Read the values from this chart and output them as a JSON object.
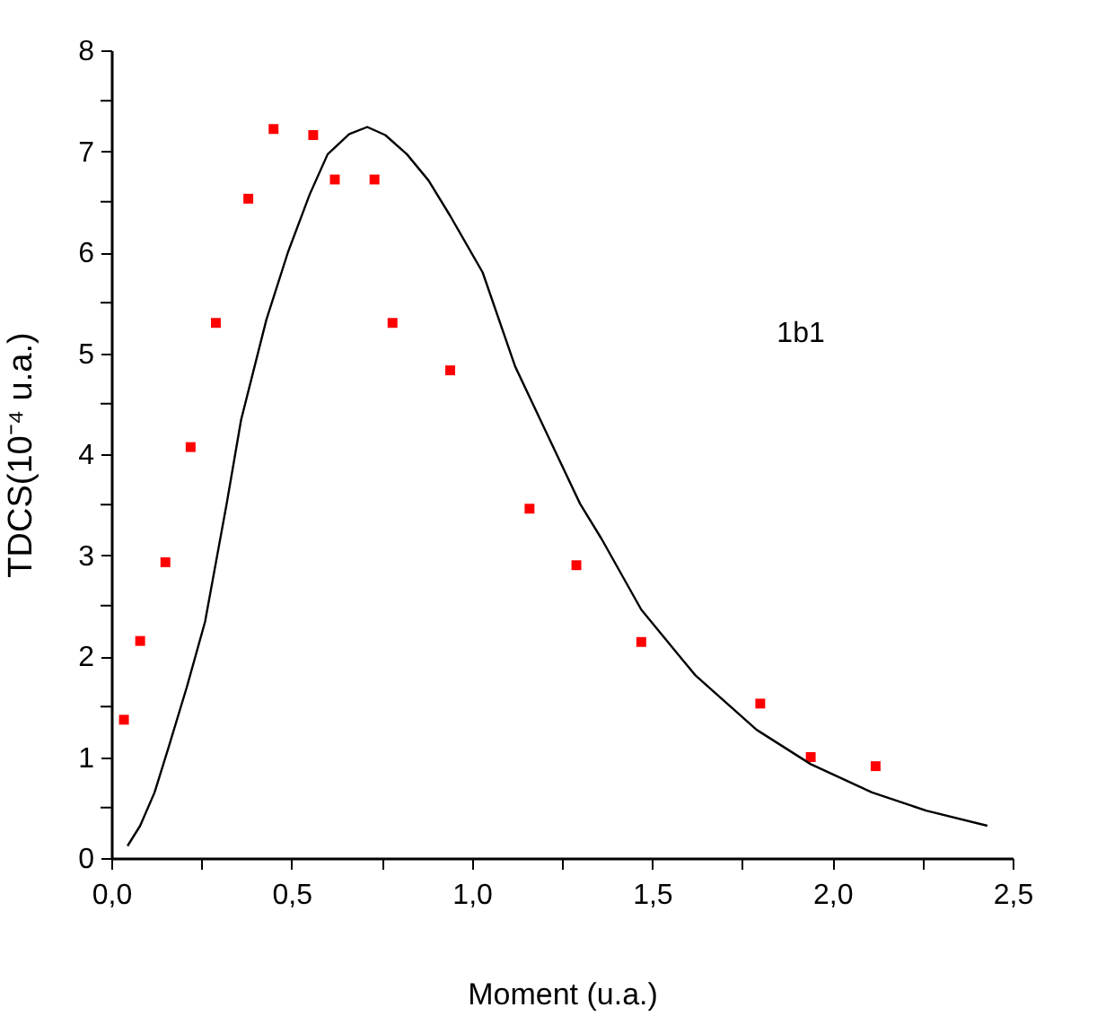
{
  "chart_data": {
    "type": "scatter",
    "xlabel": "Moment (u.a.)",
    "ylabel": "TDCS(10⁻⁴ u.a.)",
    "annotations": [
      "1b1"
    ],
    "xlim": [
      0,
      2.5
    ],
    "ylim": [
      0,
      8
    ],
    "xticks": [
      {
        "value": 0,
        "label": "0,0"
      },
      {
        "value": 0.25,
        "label": null
      },
      {
        "value": 0.5,
        "label": "0,5"
      },
      {
        "value": 0.75,
        "label": null
      },
      {
        "value": 1.0,
        "label": "1,0"
      },
      {
        "value": 1.25,
        "label": null
      },
      {
        "value": 1.5,
        "label": "1,5"
      },
      {
        "value": 1.75,
        "label": null
      },
      {
        "value": 2.0,
        "label": "2,0"
      },
      {
        "value": 2.25,
        "label": null
      },
      {
        "value": 2.5,
        "label": "2,5"
      }
    ],
    "yticks": [
      0,
      {
        "value": 0.5,
        "label": null
      },
      1,
      {
        "value": 1.5,
        "label": null
      },
      2,
      {
        "value": 2.5,
        "label": null
      },
      3,
      {
        "value": 3.5,
        "label": null
      },
      4,
      {
        "value": 4.5,
        "label": null
      },
      5,
      {
        "value": 5.5,
        "label": null
      },
      6,
      {
        "value": 6.5,
        "label": null
      },
      7,
      {
        "value": 7.5,
        "label": null
      },
      8
    ],
    "grid": false,
    "series": [
      {
        "marker": "square",
        "color": "#ff0000",
        "x": [
          0.035,
          0.08,
          0.15,
          0.22,
          0.29,
          0.38,
          0.45,
          0.56,
          0.62,
          0.73,
          0.78,
          0.94,
          1.16,
          1.29,
          1.47,
          1.8,
          1.94,
          2.12
        ],
        "values": [
          1.37,
          2.15,
          2.93,
          4.07,
          5.3,
          6.53,
          7.22,
          7.16,
          6.72,
          6.72,
          5.3,
          4.83,
          3.46,
          2.9,
          2.14,
          1.53,
          1.0,
          0.91
        ]
      },
      {
        "type": "line",
        "line_style": "solid",
        "color": "#000000",
        "x": [
          0.045,
          0.08,
          0.12,
          0.16,
          0.21,
          0.26,
          0.32,
          0.36,
          0.43,
          0.49,
          0.55,
          0.6,
          0.66,
          0.71,
          0.76,
          0.82,
          0.88,
          0.94,
          1.03,
          1.12,
          1.19,
          1.3,
          1.36,
          1.47,
          1.62,
          1.79,
          1.94,
          2.11,
          2.26,
          2.43
        ],
        "values": [
          0.12,
          0.32,
          0.65,
          1.11,
          1.7,
          2.34,
          3.51,
          4.34,
          5.33,
          6.0,
          6.57,
          6.97,
          7.17,
          7.24,
          7.16,
          6.97,
          6.71,
          6.36,
          5.8,
          4.87,
          4.34,
          3.51,
          3.16,
          2.46,
          1.81,
          1.27,
          0.93,
          0.65,
          0.47,
          0.32
        ]
      }
    ]
  }
}
